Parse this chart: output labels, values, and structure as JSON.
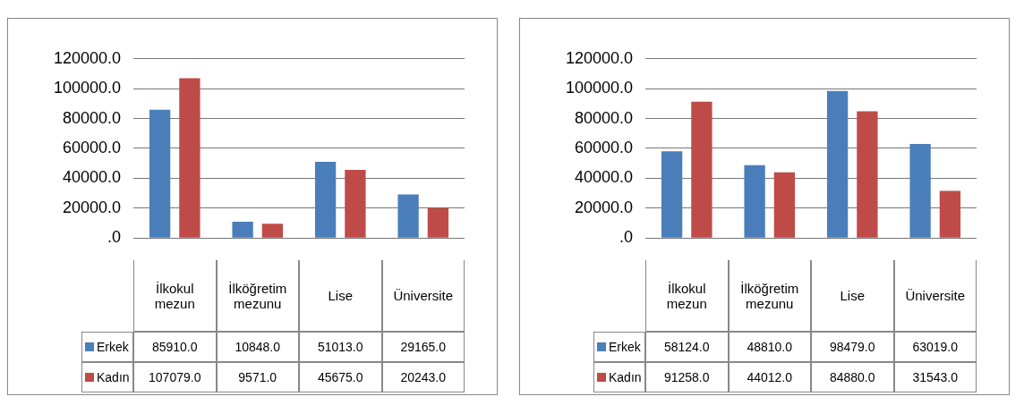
{
  "chart_data": [
    {
      "type": "bar",
      "categories": [
        "İlkokul mezun",
        "İlköğretim mezunu",
        "Lise",
        "Üniversite"
      ],
      "ylim": [
        0,
        120000
      ],
      "yticks": [
        {
          "value": 0,
          "label": ".0"
        },
        {
          "value": 20000,
          "label": "20000.0"
        },
        {
          "value": 40000,
          "label": "40000.0"
        },
        {
          "value": 60000,
          "label": "60000.0"
        },
        {
          "value": 80000,
          "label": "80000.0"
        },
        {
          "value": 100000,
          "label": "100000.0"
        },
        {
          "value": 120000,
          "label": "120000.0"
        }
      ],
      "grid": "y",
      "legend": "bottom",
      "data_labels": true,
      "series": [
        {
          "name": "Erkek",
          "color": "#4a7ebb",
          "values": [
            85910,
            10848,
            51013,
            29165
          ],
          "value_labels": [
            "85910.0",
            "10848.0",
            "51013.0",
            "29165.0"
          ]
        },
        {
          "name": "Kadın",
          "color": "#be4b48",
          "values": [
            107079,
            9571,
            45675,
            20243
          ],
          "value_labels": [
            "107079.0",
            "9571.0",
            "45675.0",
            "20243.0"
          ]
        }
      ]
    },
    {
      "type": "bar",
      "categories": [
        "İlkokul mezun",
        "İlköğretim mezunu",
        "Lise",
        "Üniversite"
      ],
      "ylim": [
        0,
        120000
      ],
      "yticks": [
        {
          "value": 0,
          "label": ".0"
        },
        {
          "value": 20000,
          "label": "20000.0"
        },
        {
          "value": 40000,
          "label": "40000.0"
        },
        {
          "value": 60000,
          "label": "60000.0"
        },
        {
          "value": 80000,
          "label": "80000.0"
        },
        {
          "value": 100000,
          "label": "100000.0"
        },
        {
          "value": 120000,
          "label": "120000.0"
        }
      ],
      "grid": "y",
      "legend": "bottom",
      "data_labels": true,
      "series": [
        {
          "name": "Erkek",
          "color": "#4a7ebb",
          "values": [
            58124,
            48810,
            98479,
            63019
          ],
          "value_labels": [
            "58124.0",
            "48810.0",
            "98479.0",
            "63019.0"
          ]
        },
        {
          "name": "Kadın",
          "color": "#be4b48",
          "values": [
            91258,
            44012,
            84880,
            31543
          ],
          "value_labels": [
            "91258.0",
            "44012.0",
            "84880.0",
            "31543.0"
          ]
        }
      ]
    }
  ]
}
